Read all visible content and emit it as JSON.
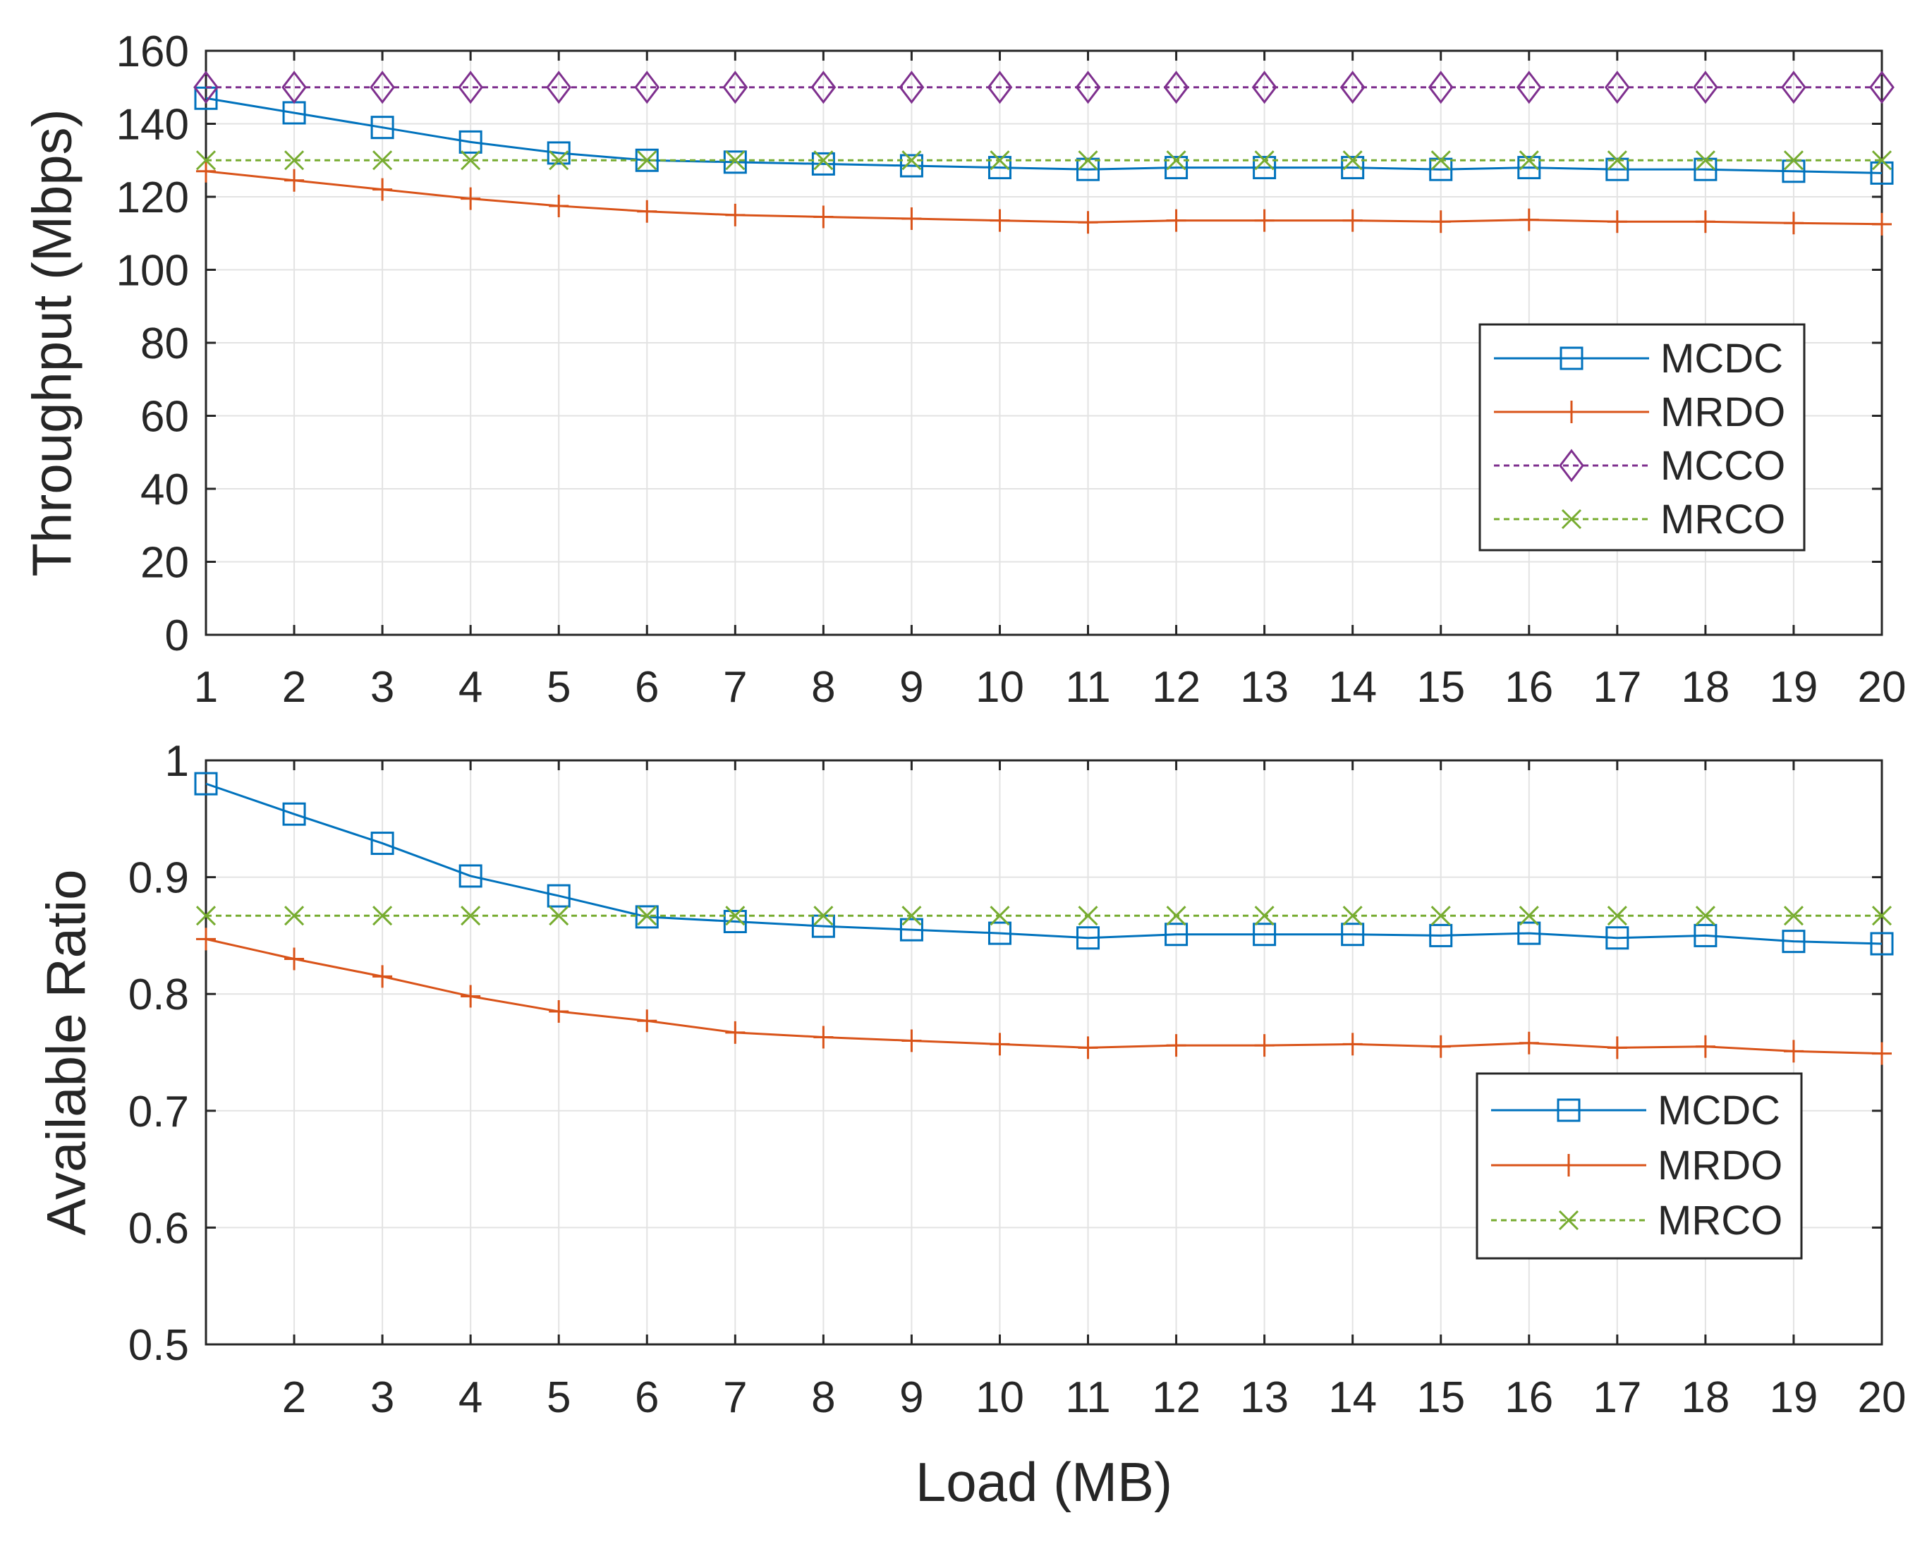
{
  "chart_data": [
    {
      "type": "line",
      "title": "",
      "xlabel": "",
      "ylabel": "Throughput (Mbps)",
      "xlim": [
        1,
        20
      ],
      "ylim": [
        0,
        160
      ],
      "xticks": [
        1,
        2,
        3,
        4,
        5,
        6,
        7,
        8,
        9,
        10,
        11,
        12,
        13,
        14,
        15,
        16,
        17,
        18,
        19,
        20
      ],
      "yticks": [
        0,
        20,
        40,
        60,
        80,
        100,
        120,
        140,
        160
      ],
      "grid": true,
      "legend_position": "right",
      "x": [
        1,
        2,
        3,
        4,
        5,
        6,
        7,
        8,
        9,
        10,
        11,
        12,
        13,
        14,
        15,
        16,
        17,
        18,
        19,
        20
      ],
      "series": [
        {
          "name": "MCDC",
          "color": "#0072BD",
          "marker": "square",
          "dashed": false,
          "values": [
            147,
            143,
            139,
            135,
            132,
            130,
            129.5,
            129,
            128.5,
            128,
            127.5,
            128,
            128,
            128,
            127.5,
            128,
            127.5,
            127.5,
            127,
            126.5
          ]
        },
        {
          "name": "MRDO",
          "color": "#D95319",
          "marker": "plus",
          "dashed": false,
          "values": [
            127,
            124.5,
            122,
            119.5,
            117.5,
            116,
            115,
            114.5,
            114,
            113.5,
            113,
            113.5,
            113.5,
            113.5,
            113.2,
            113.7,
            113.2,
            113.2,
            112.8,
            112.5
          ]
        },
        {
          "name": "MCCO",
          "color": "#7E2F8E",
          "marker": "diamond",
          "dashed": true,
          "values": [
            150,
            150,
            150,
            150,
            150,
            150,
            150,
            150,
            150,
            150,
            150,
            150,
            150,
            150,
            150,
            150,
            150,
            150,
            150,
            150
          ]
        },
        {
          "name": "MRCO",
          "color": "#77AC30",
          "marker": "x",
          "dashed": true,
          "values": [
            130,
            130,
            130,
            130,
            130,
            130,
            130,
            130,
            130,
            130,
            130,
            130,
            130,
            130,
            130,
            130,
            130,
            130,
            130,
            130
          ]
        }
      ]
    },
    {
      "type": "line",
      "title": "",
      "xlabel": "Load (MB)",
      "ylabel": "Available Ratio",
      "xlim": [
        1,
        20
      ],
      "ylim": [
        0.5,
        1
      ],
      "xticks": [
        2,
        3,
        4,
        5,
        6,
        7,
        8,
        9,
        10,
        11,
        12,
        13,
        14,
        15,
        16,
        17,
        18,
        19,
        20
      ],
      "yticks": [
        0.5,
        0.6,
        0.7,
        0.8,
        0.9,
        1
      ],
      "ytick_labels": [
        "0.5",
        "0.6",
        "0.7",
        "0.8",
        "0.9",
        "1"
      ],
      "grid": true,
      "legend_position": "right",
      "x": [
        1,
        2,
        3,
        4,
        5,
        6,
        7,
        8,
        9,
        10,
        11,
        12,
        13,
        14,
        15,
        16,
        17,
        18,
        19,
        20
      ],
      "series": [
        {
          "name": "MCDC",
          "color": "#0072BD",
          "marker": "square",
          "dashed": false,
          "values": [
            0.98,
            0.954,
            0.929,
            0.901,
            0.884,
            0.866,
            0.862,
            0.858,
            0.855,
            0.852,
            0.848,
            0.851,
            0.851,
            0.851,
            0.85,
            0.852,
            0.848,
            0.85,
            0.845,
            0.843
          ]
        },
        {
          "name": "MRDO",
          "color": "#D95319",
          "marker": "plus",
          "dashed": false,
          "values": [
            0.847,
            0.83,
            0.815,
            0.798,
            0.785,
            0.777,
            0.767,
            0.763,
            0.76,
            0.757,
            0.754,
            0.756,
            0.756,
            0.757,
            0.755,
            0.758,
            0.754,
            0.755,
            0.751,
            0.749
          ]
        },
        {
          "name": "MRCO",
          "color": "#77AC30",
          "marker": "x",
          "dashed": true,
          "values": [
            0.867,
            0.867,
            0.867,
            0.867,
            0.867,
            0.867,
            0.867,
            0.867,
            0.867,
            0.867,
            0.867,
            0.867,
            0.867,
            0.867,
            0.867,
            0.867,
            0.867,
            0.867,
            0.867,
            0.867
          ]
        }
      ]
    }
  ]
}
